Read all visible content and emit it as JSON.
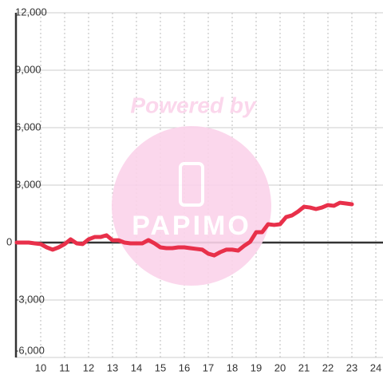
{
  "chart_data": {
    "type": "line",
    "annotations": [
      "Powered by",
      "PAPIMO"
    ],
    "x": [
      9,
      9.25,
      9.5,
      9.75,
      10,
      10.25,
      10.5,
      10.75,
      11,
      11.25,
      11.5,
      11.75,
      12,
      12.25,
      12.5,
      12.75,
      13,
      13.25,
      13.5,
      13.75,
      14,
      14.25,
      14.5,
      14.75,
      15,
      15.25,
      15.5,
      15.75,
      16,
      16.25,
      16.5,
      16.75,
      17,
      17.25,
      17.5,
      17.75,
      18,
      18.25,
      18.5,
      18.75,
      19,
      19.25,
      19.5,
      19.75,
      20,
      20.25,
      20.5,
      20.75,
      21,
      21.25,
      21.5,
      21.75,
      22,
      22.25,
      22.5,
      22.75,
      23
    ],
    "series": [
      {
        "color": "#e8304a",
        "values": [
          0,
          0,
          0,
          -40,
          -80,
          -250,
          -370,
          -250,
          -80,
          170,
          -40,
          -80,
          170,
          290,
          290,
          380,
          120,
          120,
          0,
          -40,
          -40,
          -40,
          130,
          -40,
          -250,
          -290,
          -290,
          -250,
          -250,
          -290,
          -330,
          -370,
          -580,
          -670,
          -500,
          -370,
          -370,
          -420,
          -170,
          40,
          540,
          540,
          960,
          920,
          960,
          1330,
          1420,
          1620,
          1870,
          1830,
          1750,
          1830,
          1960,
          1920,
          2080,
          2040,
          2000
        ]
      }
    ],
    "xlim": [
      9,
      24.3
    ],
    "xticks": [
      10,
      11,
      12,
      13,
      14,
      15,
      16,
      17,
      18,
      19,
      20,
      21,
      22,
      23,
      24
    ],
    "ylim": [
      -6000,
      12000
    ],
    "yticks": [
      {
        "value": -6000,
        "label": "-6,000"
      },
      {
        "value": -3000,
        "label": "-3,000"
      },
      0,
      {
        "value": 3000,
        "label": "3,000"
      },
      {
        "value": 6000,
        "label": "6,000"
      },
      {
        "value": 9000,
        "label": "9,000"
      },
      {
        "value": 12000,
        "label": "12,000"
      }
    ],
    "grid": true
  }
}
